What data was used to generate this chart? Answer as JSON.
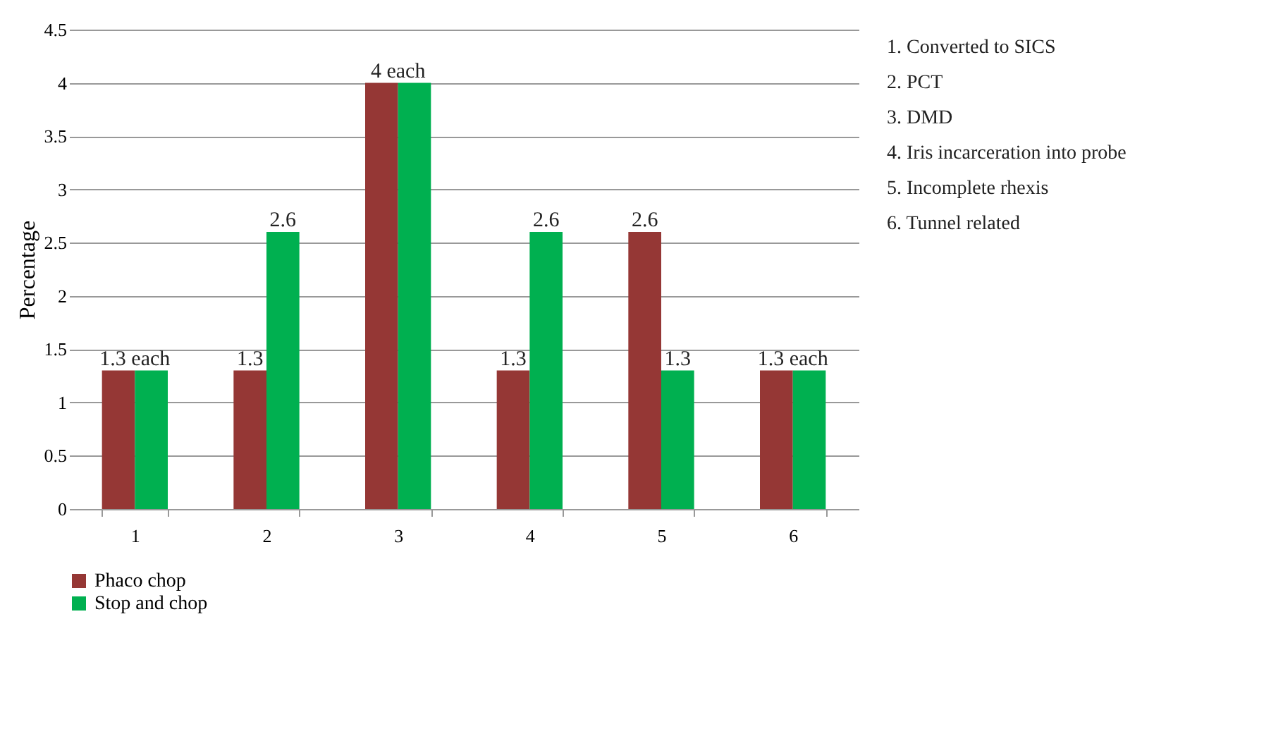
{
  "chart_data": {
    "type": "bar",
    "ylabel": "Percentage",
    "categories": [
      "1",
      "2",
      "3",
      "4",
      "5",
      "6"
    ],
    "series": [
      {
        "name": "Phaco chop",
        "color": "#953735",
        "values": [
          1.3,
          1.3,
          4,
          1.3,
          2.6,
          1.3
        ],
        "value_labels": [
          "1.3 each",
          "1.3",
          "4 each",
          "1.3",
          "2.6",
          "1.3 each"
        ]
      },
      {
        "name": "Stop and chop",
        "color": "#00b050",
        "values": [
          1.3,
          2.6,
          4,
          2.6,
          1.3,
          1.3
        ],
        "value_labels": [
          null,
          "2.6",
          null,
          "2.6",
          "1.3",
          null
        ]
      }
    ],
    "ylim": [
      0,
      4.5
    ],
    "yticks": [
      0,
      0.5,
      1,
      1.5,
      2,
      2.5,
      3,
      3.5,
      4,
      4.5
    ],
    "grid": "y",
    "legend": "bottom",
    "annotations": [
      "1.  Converted to SICS",
      "2.  PCT",
      "3.  DMD",
      "4.  Iris incarceration into probe",
      "5.  Incomplete rhexis",
      "6.  Tunnel related"
    ]
  }
}
